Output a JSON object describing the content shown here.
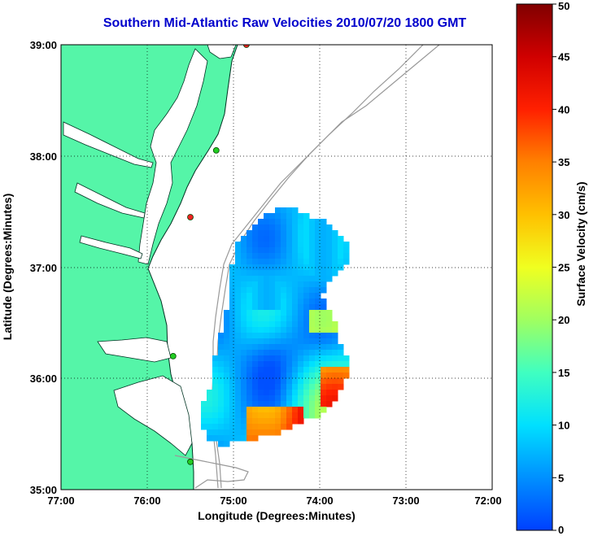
{
  "title": "Southern Mid-Atlantic Raw Velocities 2010/07/20 1800 GMT",
  "axes": {
    "xlabel": "Longitude (Degrees:Minutes)",
    "ylabel": "Latitude (Degrees:Minutes)",
    "x_ticks": [
      "77:00",
      "76:00",
      "75:00",
      "74:00",
      "73:00",
      "72:00"
    ],
    "y_ticks": [
      "39:00",
      "38:00",
      "37:00",
      "36:00",
      "35:00"
    ]
  },
  "colorbar": {
    "label": "Surface Velocity (cm/s)",
    "ticks": [
      "50",
      "45",
      "40",
      "35",
      "30",
      "25",
      "20",
      "15",
      "10",
      "5",
      "0"
    ],
    "min": 0,
    "max": 50
  },
  "colors": {
    "land": "#55f5a8",
    "title": "#0000cc",
    "bathymetry": "#999999",
    "station_active": "#22cc22",
    "station_inactive": "#ee2222"
  },
  "chart_data": {
    "type": "map",
    "xlim": [
      -77,
      -72
    ],
    "ylim": [
      35,
      39
    ],
    "grid": true,
    "stations": [
      {
        "status": "inactive",
        "lon": -74.85,
        "lat": 39.0
      },
      {
        "status": "active",
        "lon": -75.2,
        "lat": 38.05
      },
      {
        "status": "inactive",
        "lon": -75.5,
        "lat": 37.45
      },
      {
        "status": "active",
        "lon": -75.7,
        "lat": 36.2
      },
      {
        "status": "active",
        "lon": -75.5,
        "lat": 35.25
      }
    ]
  }
}
